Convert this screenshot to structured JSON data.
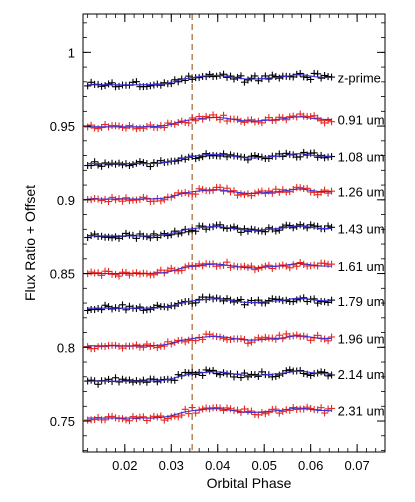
{
  "chart_data": {
    "type": "scatter",
    "xlabel": "Orbital Phase",
    "ylabel": "Flux Ratio + Offset",
    "xlim": [
      0.011,
      0.076
    ],
    "ylim": [
      0.729,
      1.026
    ],
    "x_ticks": [
      0.02,
      0.03,
      0.04,
      0.05,
      0.06,
      0.07
    ],
    "x_tick_labels": [
      "0.02",
      "0.03",
      "0.04",
      "0.05",
      "0.06",
      "0.07"
    ],
    "y_ticks": [
      0.75,
      0.8,
      0.85,
      0.9,
      0.95,
      1.0
    ],
    "y_tick_labels": [
      "0.75",
      "0.8",
      "0.85",
      "0.9",
      "0.95",
      "1"
    ],
    "grid": false,
    "legend": "series labels printed at right end of each curve",
    "vertical_line": {
      "x": 0.0345,
      "style": "dashed",
      "color": "#b07a4f"
    },
    "model_color": "#3b2fd6",
    "phase_range": [
      0.012,
      0.0645
    ],
    "phase_step": 0.00075,
    "series": [
      {
        "name": "z-prime",
        "baseline": 0.978,
        "color": "#000000",
        "seed": 3
      },
      {
        "name": "0.91 um",
        "baseline": 0.9495,
        "color": "#e8281f",
        "seed": 7
      },
      {
        "name": "1.08 um",
        "baseline": 0.9245,
        "color": "#000000",
        "seed": 11
      },
      {
        "name": "1.26 um",
        "baseline": 0.9005,
        "color": "#e8281f",
        "seed": 17
      },
      {
        "name": "1.43 um",
        "baseline": 0.8755,
        "color": "#000000",
        "seed": 23
      },
      {
        "name": "1.61 um",
        "baseline": 0.85,
        "color": "#e8281f",
        "seed": 29
      },
      {
        "name": "1.79 um",
        "baseline": 0.8265,
        "color": "#000000",
        "seed": 31
      },
      {
        "name": "1.96 um",
        "baseline": 0.801,
        "color": "#e8281f",
        "seed": 37
      },
      {
        "name": "2.14 um",
        "baseline": 0.777,
        "color": "#000000",
        "seed": 41
      },
      {
        "name": "2.31 um",
        "baseline": 0.752,
        "color": "#e8281f",
        "seed": 43
      }
    ]
  }
}
